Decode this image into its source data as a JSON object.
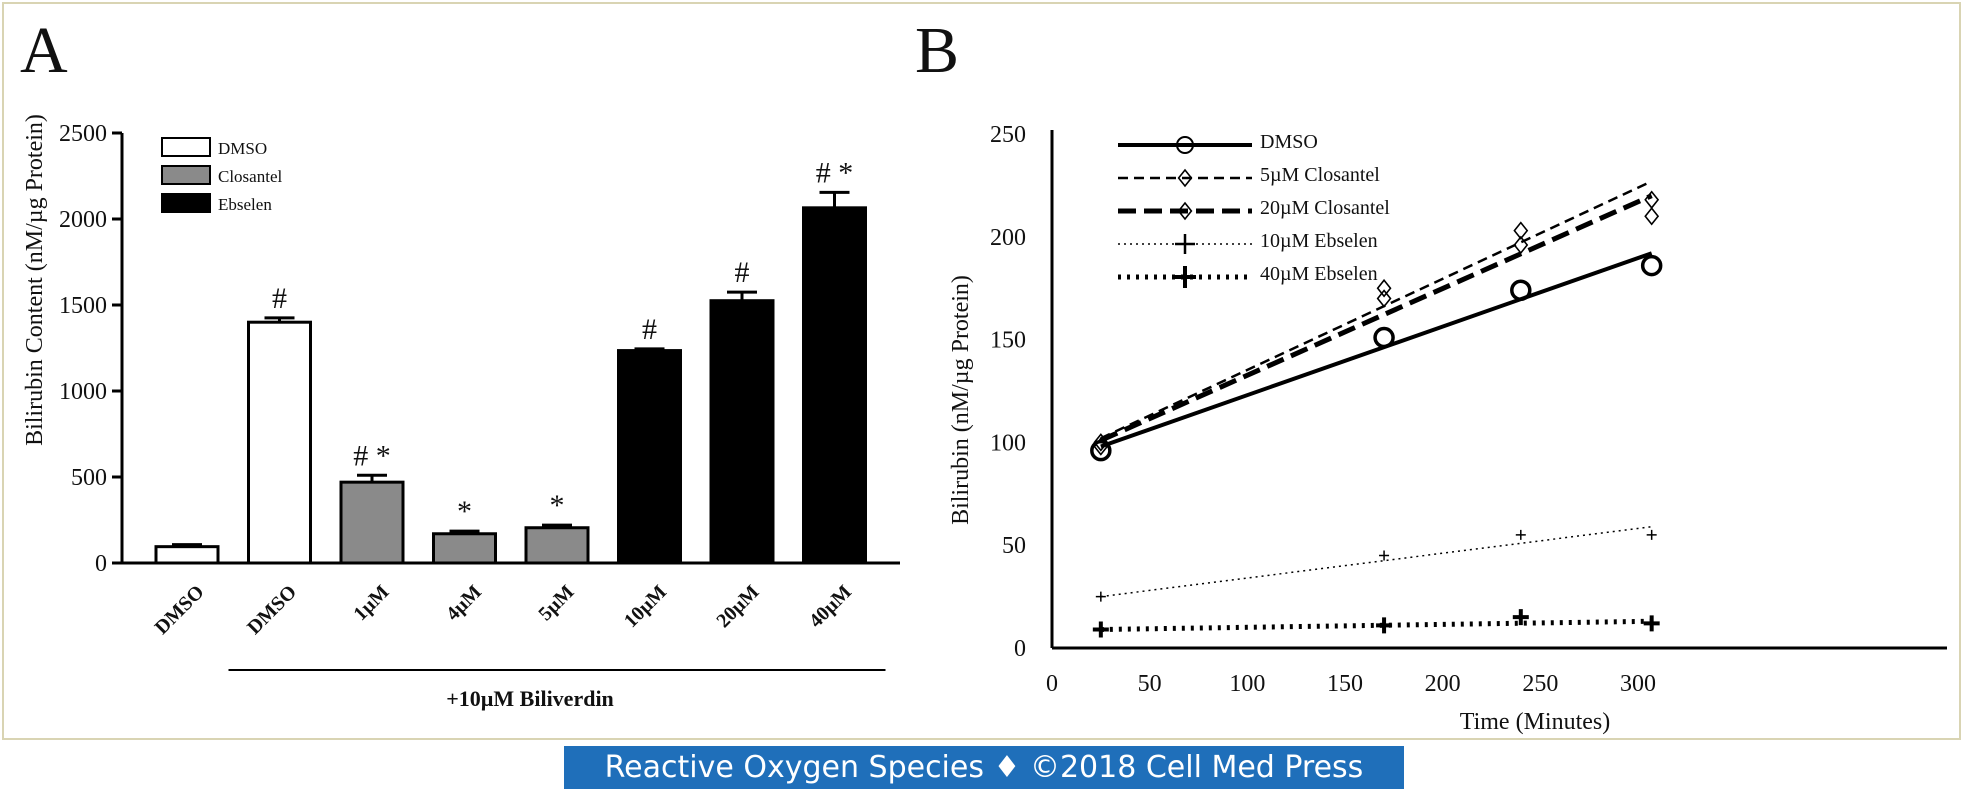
{
  "footer": {
    "text": "Reactive Oxygen Species ♦ ©2018 Cell Med Press"
  },
  "chart_data": [
    {
      "panel": "A",
      "type": "bar",
      "ylabel": "Bilirubin Content (nM/µg Protein)",
      "ylim": [
        0,
        2500
      ],
      "yticks": [
        0,
        500,
        1000,
        1500,
        2000,
        2500
      ],
      "group_label": "+10µM Biliverdin",
      "legend": {
        "placement": "top-left",
        "items": [
          {
            "name": "DMSO",
            "color": "#ffffff"
          },
          {
            "name": "Closantel",
            "color": "#8a8a8a"
          },
          {
            "name": "Ebselen",
            "color": "#000000"
          }
        ]
      },
      "bars": [
        {
          "category": "DMSO",
          "value": 95,
          "error": 12,
          "series": "DMSO",
          "annotation": ""
        },
        {
          "category": "DMSO",
          "value": 1400,
          "error": 25,
          "series": "DMSO",
          "annotation": "#"
        },
        {
          "category": "1µM",
          "value": 470,
          "error": 40,
          "series": "Closantel",
          "annotation": "# *"
        },
        {
          "category": "4µM",
          "value": 170,
          "error": 15,
          "series": "Closantel",
          "annotation": "*"
        },
        {
          "category": "5µM",
          "value": 205,
          "error": 15,
          "series": "Closantel",
          "annotation": "*"
        },
        {
          "category": "10µM",
          "value": 1235,
          "error": 10,
          "series": "Ebselen",
          "annotation": "#"
        },
        {
          "category": "20µM",
          "value": 1525,
          "error": 50,
          "series": "Ebselen",
          "annotation": "#"
        },
        {
          "category": "40µM",
          "value": 2065,
          "error": 90,
          "series": "Ebselen",
          "annotation": "# *"
        }
      ]
    },
    {
      "panel": "B",
      "type": "scatter",
      "xlabel": "Time (Minutes)",
      "ylabel": "Bilirubin (nM/µg Protein)",
      "xlim": [
        0,
        310
      ],
      "ylim": [
        0,
        250
      ],
      "xticks": [
        0,
        50,
        100,
        150,
        200,
        250,
        300
      ],
      "yticks": [
        0,
        50,
        100,
        150,
        200,
        250
      ],
      "legend": {
        "placement": "top-left"
      },
      "series": [
        {
          "name": "DMSO",
          "marker": "circle",
          "line": "solid",
          "points": [
            [
              25,
              96
            ],
            [
              170,
              151
            ],
            [
              240,
              174
            ],
            [
              307,
              186
            ]
          ],
          "fit": [
            [
              25,
              98
            ],
            [
              307,
              192
            ]
          ]
        },
        {
          "name": "5µM Closantel",
          "marker": "diamond",
          "line": "dashed",
          "points": [
            [
              25,
              100
            ],
            [
              170,
              175
            ],
            [
              240,
              203
            ],
            [
              307,
              218
            ]
          ],
          "fit": [
            [
              25,
              102
            ],
            [
              307,
              227
            ]
          ]
        },
        {
          "name": "20µM Closantel",
          "marker": "diamond",
          "line": "long-dashed",
          "points": [
            [
              25,
              98
            ],
            [
              170,
              170
            ],
            [
              240,
              196
            ],
            [
              307,
              210
            ]
          ],
          "fit": [
            [
              25,
              101
            ],
            [
              307,
              220
            ]
          ]
        },
        {
          "name": "10µM Ebselen",
          "marker": "plus",
          "line": "fine-dotted",
          "points": [
            [
              25,
              25
            ],
            [
              170,
              45
            ],
            [
              240,
              55
            ],
            [
              307,
              55
            ]
          ],
          "fit": [
            [
              25,
              25
            ],
            [
              307,
              59
            ]
          ]
        },
        {
          "name": "40µM Ebselen",
          "marker": "bold-plus",
          "line": "bold-dotted",
          "points": [
            [
              25,
              9
            ],
            [
              170,
              11
            ],
            [
              240,
              15
            ],
            [
              307,
              12
            ]
          ],
          "fit": [
            [
              25,
              9
            ],
            [
              307,
              13
            ]
          ]
        }
      ]
    }
  ],
  "panel_labels": [
    "A",
    "B"
  ]
}
